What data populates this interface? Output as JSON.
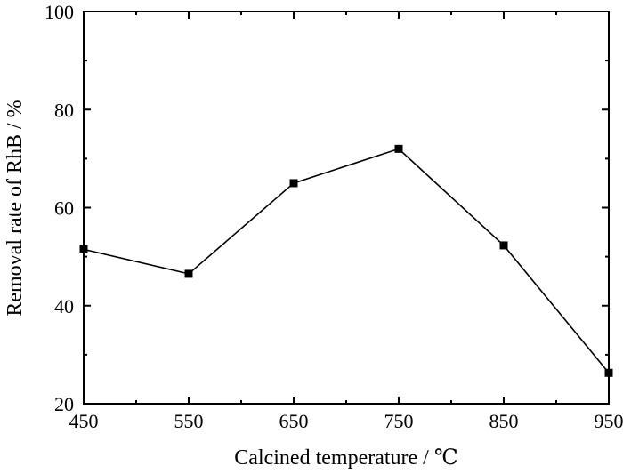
{
  "chart_data": {
    "type": "line",
    "title": "",
    "xlabel": "Calcined temperature / ℃",
    "ylabel": "Removal rate of RhB / %",
    "xlim": [
      450,
      950
    ],
    "ylim": [
      20,
      100
    ],
    "x_ticks": [
      "450",
      "550",
      "650",
      "750",
      "850",
      "950"
    ],
    "y_ticks": [
      "20",
      "40",
      "60",
      "80",
      "100"
    ],
    "grid": false,
    "series": [
      {
        "marker": "square",
        "color": "#000000",
        "x": [
          450,
          550,
          650,
          750,
          850,
          950
        ],
        "y": [
          51.5,
          46.5,
          65.0,
          72.0,
          52.3,
          26.3
        ]
      }
    ]
  }
}
